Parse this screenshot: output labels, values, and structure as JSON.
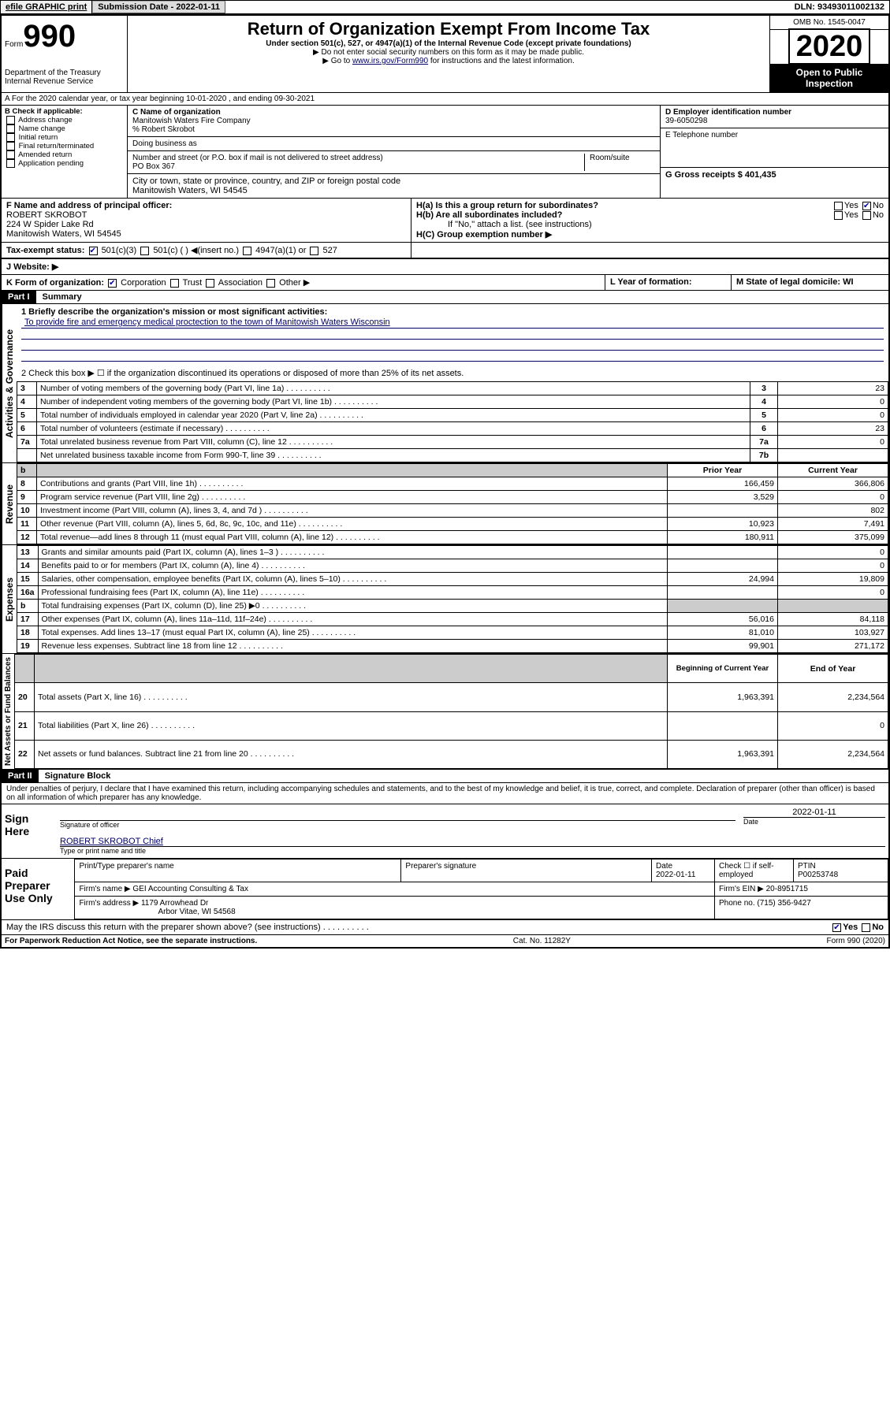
{
  "top": {
    "efile": "efile GRAPHIC print",
    "submission_label": "Submission Date - 2022-01-11",
    "dln": "DLN: 93493011002132"
  },
  "header": {
    "form_prefix": "Form",
    "form_number": "990",
    "dept": "Department of the Treasury\nInternal Revenue Service",
    "title": "Return of Organization Exempt From Income Tax",
    "subtitle": "Under section 501(c), 527, or 4947(a)(1) of the Internal Revenue Code (except private foundations)",
    "note1": "▶ Do not enter social security numbers on this form as it may be made public.",
    "note2_pre": "▶ Go to ",
    "note2_link": "www.irs.gov/Form990",
    "note2_post": " for instructions and the latest information.",
    "omb": "OMB No. 1545-0047",
    "year": "2020",
    "open_public": "Open to Public Inspection"
  },
  "rowA": "A For the 2020 calendar year, or tax year beginning 10-01-2020    , and ending 09-30-2021",
  "colB": {
    "header": "B Check if applicable:",
    "items": [
      "Address change",
      "Name change",
      "Initial return",
      "Final return/terminated",
      "Amended return",
      "Application pending"
    ]
  },
  "colC": {
    "name_label": "C Name of organization",
    "name": "Manitowish Waters Fire Company",
    "care_of": "% Robert Skrobot",
    "dba_label": "Doing business as",
    "addr_label": "Number and street (or P.O. box if mail is not delivered to street address)",
    "room_label": "Room/suite",
    "addr": "PO Box 367",
    "city_label": "City or town, state or province, country, and ZIP or foreign postal code",
    "city": "Manitowish Waters, WI  54545"
  },
  "colD": {
    "ein_label": "D Employer identification number",
    "ein": "39-6050298",
    "phone_label": "E Telephone number",
    "gross_label": "G Gross receipts $ 401,435"
  },
  "rowF": {
    "label": "F  Name and address of principal officer:",
    "name": "ROBERT SKROBOT",
    "addr1": "224 W Spider Lake Rd",
    "addr2": "Manitowish Waters, WI  54545"
  },
  "rowH": {
    "a_label": "H(a)  Is this a group return for subordinates?",
    "b_label": "H(b)  Are all subordinates included?",
    "b_note": "If \"No,\" attach a list. (see instructions)",
    "c_label": "H(C)  Group exemption number ▶"
  },
  "taxStatus": {
    "label": "Tax-exempt status:",
    "opts": [
      "501(c)(3)",
      "501(c) (  ) ◀(insert no.)",
      "4947(a)(1) or",
      "527"
    ]
  },
  "website": {
    "label": "J   Website: ▶"
  },
  "rowK": {
    "label": "K Form of organization:",
    "opts": [
      "Corporation",
      "Trust",
      "Association",
      "Other ▶"
    ],
    "l_label": "L Year of formation:",
    "m_label": "M State of legal domicile: WI"
  },
  "partI": {
    "header": "Part I",
    "title": "Summary",
    "l1_label": "1  Briefly describe the organization's mission or most significant activities:",
    "l1_text": "To provide fire and emergency medical proctection to the town of Manitowish Waters Wisconsin",
    "l2": "2     Check this box ▶ ☐  if the organization discontinued its operations or disposed of more than 25% of its net assets.",
    "gov_rows": [
      {
        "n": "3",
        "t": "Number of voting members of the governing body (Part VI, line 1a)",
        "box": "3",
        "v": "23"
      },
      {
        "n": "4",
        "t": "Number of independent voting members of the governing body (Part VI, line 1b)",
        "box": "4",
        "v": "0"
      },
      {
        "n": "5",
        "t": "Total number of individuals employed in calendar year 2020 (Part V, line 2a)",
        "box": "5",
        "v": "0"
      },
      {
        "n": "6",
        "t": "Total number of volunteers (estimate if necessary)",
        "box": "6",
        "v": "23"
      },
      {
        "n": "7a",
        "t": "Total unrelated business revenue from Part VIII, column (C), line 12",
        "box": "7a",
        "v": "0"
      },
      {
        "n": "",
        "t": "Net unrelated business taxable income from Form 990-T, line 39",
        "box": "7b",
        "v": ""
      }
    ],
    "pycy_header": {
      "b": "b",
      "prior": "Prior Year",
      "current": "Current Year"
    },
    "rev_rows": [
      {
        "n": "8",
        "t": "Contributions and grants (Part VIII, line 1h)",
        "p": "166,459",
        "c": "366,806"
      },
      {
        "n": "9",
        "t": "Program service revenue (Part VIII, line 2g)",
        "p": "3,529",
        "c": "0"
      },
      {
        "n": "10",
        "t": "Investment income (Part VIII, column (A), lines 3, 4, and 7d )",
        "p": "",
        "c": "802"
      },
      {
        "n": "11",
        "t": "Other revenue (Part VIII, column (A), lines 5, 6d, 8c, 9c, 10c, and 11e)",
        "p": "10,923",
        "c": "7,491"
      },
      {
        "n": "12",
        "t": "Total revenue—add lines 8 through 11 (must equal Part VIII, column (A), line 12)",
        "p": "180,911",
        "c": "375,099"
      }
    ],
    "exp_rows": [
      {
        "n": "13",
        "t": "Grants and similar amounts paid (Part IX, column (A), lines 1–3 )",
        "p": "",
        "c": "0"
      },
      {
        "n": "14",
        "t": "Benefits paid to or for members (Part IX, column (A), line 4)",
        "p": "",
        "c": "0"
      },
      {
        "n": "15",
        "t": "Salaries, other compensation, employee benefits (Part IX, column (A), lines 5–10)",
        "p": "24,994",
        "c": "19,809"
      },
      {
        "n": "16a",
        "t": "Professional fundraising fees (Part IX, column (A), line 11e)",
        "p": "",
        "c": "0"
      },
      {
        "n": "b",
        "t": "Total fundraising expenses (Part IX, column (D), line 25)  ▶0",
        "p": "SHADE",
        "c": "SHADE"
      },
      {
        "n": "17",
        "t": "Other expenses (Part IX, column (A), lines 11a–11d, 11f–24e)",
        "p": "56,016",
        "c": "84,118"
      },
      {
        "n": "18",
        "t": "Total expenses. Add lines 13–17 (must equal Part IX, column (A), line 25)",
        "p": "81,010",
        "c": "103,927"
      },
      {
        "n": "19",
        "t": "Revenue less expenses. Subtract line 18 from line 12",
        "p": "99,901",
        "c": "271,172"
      }
    ],
    "na_header": {
      "prior": "Beginning of Current Year",
      "current": "End of Year"
    },
    "na_rows": [
      {
        "n": "20",
        "t": "Total assets (Part X, line 16)",
        "p": "1,963,391",
        "c": "2,234,564"
      },
      {
        "n": "21",
        "t": "Total liabilities (Part X, line 26)",
        "p": "",
        "c": "0"
      },
      {
        "n": "22",
        "t": "Net assets or fund balances. Subtract line 21 from line 20",
        "p": "1,963,391",
        "c": "2,234,564"
      }
    ],
    "labels": {
      "gov": "Activities & Governance",
      "rev": "Revenue",
      "exp": "Expenses",
      "na": "Net Assets or\nFund Balances"
    }
  },
  "partII": {
    "header": "Part II",
    "title": "Signature Block",
    "perjury": "Under penalties of perjury, I declare that I have examined this return, including accompanying schedules and statements, and to the best of my knowledge and belief, it is true, correct, and complete. Declaration of preparer (other than officer) is based on all information of which preparer has any knowledge.",
    "sign_here": "Sign Here",
    "sig_officer": "Signature of officer",
    "sig_date": "2022-01-11",
    "date_label": "Date",
    "officer_name": "ROBERT SKROBOT  Chief",
    "name_title_label": "Type or print name and title",
    "paid_prep": "Paid Preparer Use Only",
    "prep_headers": {
      "name": "Print/Type preparer's name",
      "sig": "Preparer's signature",
      "date": "Date",
      "check": "Check ☐ if self-employed",
      "ptin": "PTIN"
    },
    "prep_date": "2022-01-11",
    "ptin": "P00253748",
    "firm_name_label": "Firm's name      ▶",
    "firm_name": "GEI Accounting Consulting & Tax",
    "firm_ein_label": "Firm's EIN ▶",
    "firm_ein": "20-8951715",
    "firm_addr_label": "Firm's address  ▶",
    "firm_addr": "1179 Arrowhead Dr",
    "firm_city": "Arbor Vitae, WI  54568",
    "phone_label": "Phone no.",
    "phone": "(715) 356-9427",
    "discuss": "May the IRS discuss this return with the preparer shown above? (see instructions)"
  },
  "footer": {
    "paperwork": "For Paperwork Reduction Act Notice, see the separate instructions.",
    "cat": "Cat. No. 11282Y",
    "form": "Form 990 (2020)"
  }
}
